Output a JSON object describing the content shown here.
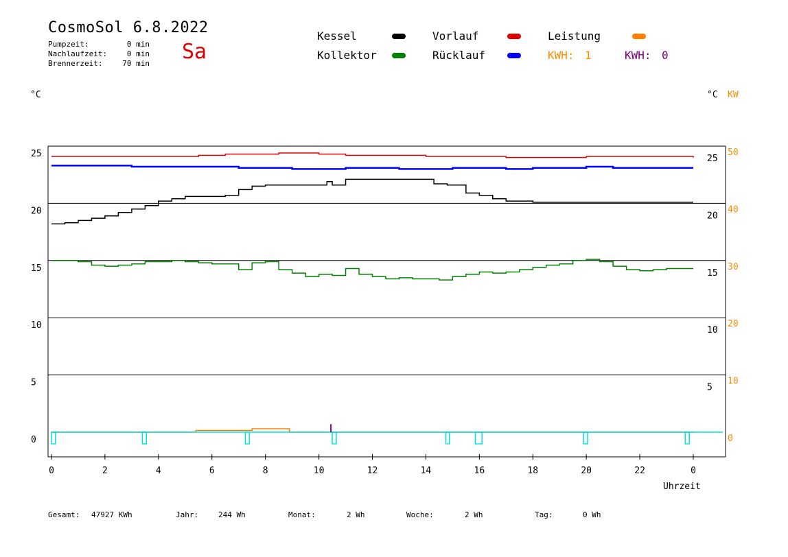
{
  "header": {
    "title": "CosmoSol 6.8.2022",
    "day": "Sa",
    "stats": [
      {
        "label": "Pumpzeit:",
        "value": "0 min"
      },
      {
        "label": "Nachlaufzeit:",
        "value": "0 min"
      },
      {
        "label": "Brennerzeit:",
        "value": "70 min"
      }
    ]
  },
  "legend": {
    "items": [
      {
        "label": "Kessel",
        "color": "#000000"
      },
      {
        "label": "Kollektor",
        "color": "#008000"
      },
      {
        "label": "Vorlauf",
        "color": "#e00000"
      },
      {
        "label": "Rücklauf",
        "color": "#0000ff"
      },
      {
        "label": "Leistung",
        "color": "#ff8000"
      }
    ],
    "kwh_1": {
      "label": "KWH:",
      "value": "1",
      "color": "#ff8c00"
    },
    "kwh_0": {
      "label": "KWH:",
      "value": "0",
      "color": "#800080"
    }
  },
  "axes": {
    "left_unit": "°C",
    "right_unit": "°C",
    "right_unit2": "KW",
    "xlabel": "Uhrzeit"
  },
  "footer": {
    "gesamt_label": "Gesamt:",
    "gesamt_value": "47927 KWh",
    "jahr_label": "Jahr:",
    "jahr_value": "244 Wh",
    "monat_label": "Monat:",
    "monat_value": "2 Wh",
    "woche_label": "Woche:",
    "woche_value": "2 Wh",
    "tag_label": "Tag:",
    "tag_value": "0 Wh"
  },
  "chart_data": {
    "type": "line",
    "xlabel": "Uhrzeit",
    "ylabel": "°C",
    "xlim": [
      0,
      24
    ],
    "ylim": [
      -2,
      25.5
    ],
    "y2lim": [
      -4,
      51
    ],
    "x_ticks": [
      "0",
      "2",
      "4",
      "6",
      "8",
      "10",
      "12",
      "14",
      "16",
      "18",
      "20",
      "22",
      "0"
    ],
    "y_left_ticks": [
      0,
      5,
      10,
      15,
      20,
      25
    ],
    "y_right_ticks_temp": [
      5,
      10,
      15,
      20,
      25
    ],
    "y_right_ticks_kw": [
      0,
      10,
      20,
      30,
      40,
      50
    ],
    "grid_y": [
      5,
      10,
      15,
      20
    ],
    "series": [
      {
        "name": "Vorlauf",
        "color": "#e00000",
        "x": [
          0,
          2,
          4,
          5.5,
          6.5,
          7.5,
          8.5,
          10,
          11,
          12,
          14,
          16,
          17,
          18,
          20,
          22,
          24
        ],
        "y": [
          24.1,
          24.1,
          24.1,
          24.2,
          24.3,
          24.3,
          24.4,
          24.3,
          24.2,
          24.2,
          24.1,
          24.1,
          24.0,
          24.0,
          24.1,
          24.1,
          24.0
        ]
      },
      {
        "name": "Rücklauf",
        "color": "#0000ff",
        "x": [
          0,
          1,
          2,
          3,
          4,
          5,
          6,
          7,
          8,
          9,
          10,
          11,
          12,
          13,
          14,
          15,
          16,
          17,
          18,
          19,
          20,
          21,
          22,
          23,
          24
        ],
        "y": [
          23.3,
          23.3,
          23.3,
          23.2,
          23.2,
          23.2,
          23.2,
          23.1,
          23.1,
          23.0,
          23.0,
          23.1,
          23.1,
          23.0,
          23.0,
          23.1,
          23.1,
          23.0,
          23.1,
          23.1,
          23.2,
          23.1,
          23.1,
          23.1,
          23.1
        ]
      },
      {
        "name": "Kessel",
        "color": "#000000",
        "x": [
          0,
          0.5,
          1,
          1.5,
          2,
          2.5,
          3,
          3.5,
          4,
          4.5,
          5,
          5.5,
          6,
          6.5,
          7,
          7.5,
          8,
          9,
          10,
          10.3,
          10.5,
          11,
          12,
          13,
          14,
          14.3,
          14.8,
          15.5,
          16,
          16.5,
          17,
          18,
          20,
          22,
          24
        ],
        "y": [
          18.2,
          18.3,
          18.5,
          18.7,
          18.9,
          19.2,
          19.5,
          19.8,
          20.2,
          20.4,
          20.6,
          20.6,
          20.6,
          20.7,
          21.2,
          21.5,
          21.6,
          21.6,
          21.6,
          21.9,
          21.6,
          22.1,
          22.1,
          22.1,
          22.1,
          21.7,
          21.6,
          20.9,
          20.7,
          20.4,
          20.2,
          20.1,
          20.1,
          20.1,
          20.1
        ]
      },
      {
        "name": "Kollektor",
        "color": "#008000",
        "x": [
          0,
          0.5,
          1,
          1.5,
          2,
          2.5,
          3,
          3.5,
          4,
          4.5,
          5,
          5.5,
          6,
          6.5,
          7,
          7.5,
          8,
          8.5,
          9,
          9.5,
          10,
          10.5,
          11,
          11.5,
          12,
          12.5,
          13,
          13.5,
          14,
          14.5,
          15,
          15.5,
          16,
          16.5,
          17,
          17.5,
          18,
          18.5,
          19,
          19.5,
          20,
          20.5,
          21,
          21.5,
          22,
          22.5,
          23,
          23.5,
          24
        ],
        "y": [
          15.0,
          15.0,
          14.9,
          14.6,
          14.5,
          14.6,
          14.7,
          14.9,
          14.9,
          15.0,
          14.9,
          14.8,
          14.7,
          14.7,
          14.2,
          14.8,
          14.9,
          14.2,
          13.9,
          13.6,
          13.8,
          13.7,
          14.3,
          13.8,
          13.6,
          13.4,
          13.5,
          13.4,
          13.4,
          13.3,
          13.6,
          13.8,
          14.0,
          13.9,
          14.0,
          14.2,
          14.4,
          14.6,
          14.7,
          15.0,
          15.1,
          14.9,
          14.5,
          14.2,
          14.1,
          14.2,
          14.3,
          14.3,
          14.3
        ]
      },
      {
        "name": "Leistung",
        "color": "#ff8000",
        "axis": "kw",
        "x": [
          0,
          5.4,
          5.4,
          7.3,
          7.5,
          8.9,
          8.9,
          24
        ],
        "y": [
          0,
          0,
          0.3,
          0.3,
          0.6,
          0.6,
          0,
          0
        ]
      },
      {
        "name": "Pumpe",
        "color": "#00e0e0",
        "pulses": [
          [
            0.0,
            0.15
          ],
          [
            3.4,
            3.55
          ],
          [
            7.25,
            7.4
          ],
          [
            10.5,
            10.65
          ],
          [
            14.75,
            14.88
          ],
          [
            15.85,
            16.1
          ],
          [
            19.9,
            20.05
          ],
          [
            23.7,
            23.85
          ]
        ]
      }
    ]
  }
}
